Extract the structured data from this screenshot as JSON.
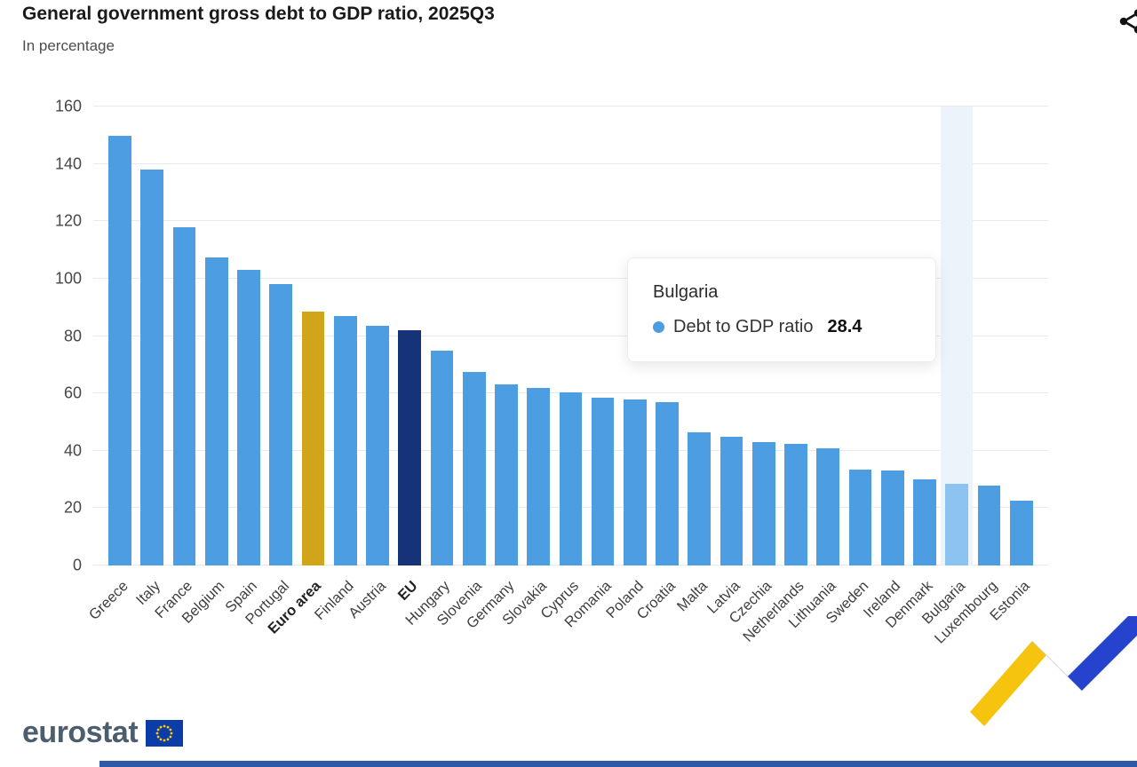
{
  "header": {
    "title": "General government gross debt to GDP ratio, 2025Q3",
    "subtitle": "In percentage"
  },
  "icons": {
    "top_right": "share-icon",
    "tooltip_marker": "dot-icon",
    "logo_flag": "eu-flag-icon"
  },
  "chart_data": {
    "type": "bar",
    "title": "General government gross debt to GDP ratio, 2025Q3",
    "subtitle": "In percentage",
    "xlabel": "",
    "ylabel": "",
    "ylim": [
      0,
      160
    ],
    "y_ticks": [
      0,
      20,
      40,
      60,
      80,
      100,
      120,
      140,
      160
    ],
    "grid": "horizontal",
    "legend": "none",
    "colors": {
      "default": "#4d9de3",
      "euro_area": "#d1a51a",
      "eu": "#16337a",
      "member_highlight": "#8dc3f1",
      "column_band": "#edf3fb",
      "gridline": "#e8e8f0"
    },
    "categories": [
      {
        "label": "Greece",
        "value": 149.8,
        "role": "default"
      },
      {
        "label": "Italy",
        "value": 138.0,
        "role": "default"
      },
      {
        "label": "France",
        "value": 118.0,
        "role": "default"
      },
      {
        "label": "Belgium",
        "value": 107.5,
        "role": "default"
      },
      {
        "label": "Spain",
        "value": 103.0,
        "role": "default"
      },
      {
        "label": "Portugal",
        "value": 98.0,
        "role": "default"
      },
      {
        "label": "Euro area",
        "value": 88.5,
        "role": "euro_area",
        "bold": true
      },
      {
        "label": "Finland",
        "value": 87.0,
        "role": "default"
      },
      {
        "label": "Austria",
        "value": 83.5,
        "role": "default"
      },
      {
        "label": "EU",
        "value": 82.0,
        "role": "eu",
        "bold": true
      },
      {
        "label": "Hungary",
        "value": 75.0,
        "role": "default"
      },
      {
        "label": "Slovenia",
        "value": 67.5,
        "role": "default"
      },
      {
        "label": "Germany",
        "value": 63.0,
        "role": "default"
      },
      {
        "label": "Slovakia",
        "value": 62.0,
        "role": "default"
      },
      {
        "label": "Cyprus",
        "value": 60.5,
        "role": "default"
      },
      {
        "label": "Romania",
        "value": 58.5,
        "role": "default"
      },
      {
        "label": "Poland",
        "value": 58.0,
        "role": "default"
      },
      {
        "label": "Croatia",
        "value": 57.0,
        "role": "default"
      },
      {
        "label": "Malta",
        "value": 46.5,
        "role": "default"
      },
      {
        "label": "Latvia",
        "value": 45.0,
        "role": "default"
      },
      {
        "label": "Czechia",
        "value": 43.0,
        "role": "default"
      },
      {
        "label": "Netherlands",
        "value": 42.5,
        "role": "default"
      },
      {
        "label": "Lithuania",
        "value": 41.0,
        "role": "default"
      },
      {
        "label": "Sweden",
        "value": 33.5,
        "role": "default"
      },
      {
        "label": "Ireland",
        "value": 33.0,
        "role": "default"
      },
      {
        "label": "Denmark",
        "value": 30.0,
        "role": "default"
      },
      {
        "label": "Bulgaria",
        "value": 28.4,
        "role": "member_highlight",
        "column_highlight": true
      },
      {
        "label": "Luxembourg",
        "value": 28.0,
        "role": "default"
      },
      {
        "label": "Estonia",
        "value": 22.5,
        "role": "default"
      }
    ]
  },
  "tooltip": {
    "country": "Bulgaria",
    "series_label": "Debt to GDP ratio",
    "value": "28.4",
    "dot_color": "#4d9de3"
  },
  "footer": {
    "logo_text": "eurostat"
  }
}
